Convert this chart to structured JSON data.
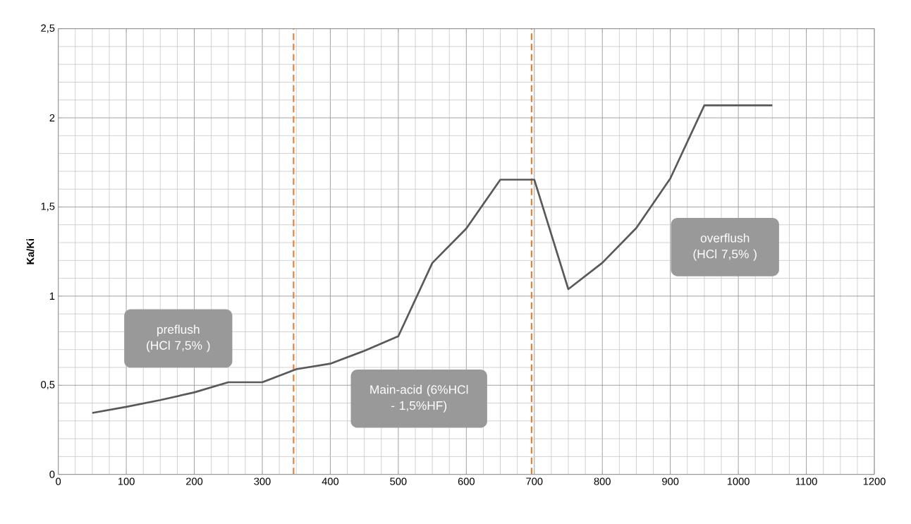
{
  "chart_data": {
    "type": "line",
    "ylabel": "Ka/Ki",
    "x": [
      50,
      100,
      150,
      200,
      250,
      300,
      350,
      400,
      450,
      500,
      550,
      600,
      650,
      700,
      750,
      800,
      850,
      900,
      950,
      1000,
      1050
    ],
    "series": [
      {
        "color": "#595959",
        "values": [
          0.345,
          0.379,
          0.417,
          0.46,
          0.517,
          0.517,
          0.59,
          0.621,
          0.693,
          0.775,
          1.186,
          1.379,
          1.653,
          1.653,
          1.039,
          1.187,
          1.382,
          1.66,
          2.07,
          2.07,
          2.07
        ]
      }
    ],
    "xlim": [
      0,
      1200
    ],
    "xticks": [
      0,
      100,
      200,
      300,
      400,
      500,
      600,
      700,
      800,
      900,
      1000,
      1100,
      1200
    ],
    "ylim": [
      0,
      2.5
    ],
    "yticks": [
      {
        "value": 0,
        "label": "0"
      },
      {
        "value": 0.5,
        "label": "0,5"
      },
      {
        "value": 1,
        "label": "1"
      },
      {
        "value": 1.5,
        "label": "1,5"
      },
      {
        "value": 2,
        "label": "2"
      },
      {
        "value": 2.5,
        "label": "2,5"
      }
    ],
    "grid": true,
    "marker": "none",
    "line_style": "solid",
    "ref_lines": [
      {
        "axis": "x",
        "value": 346,
        "color": "#ed7d31",
        "line_style": "dashed"
      },
      {
        "axis": "x",
        "value": 696,
        "color": "#ed7d31",
        "line_style": "dashed"
      }
    ],
    "annotations": [
      "preflush (HCl  7,5% )",
      "Main-acid (6%HCl - 1,5%HF)",
      "overflush (HCl  7,5% )"
    ]
  }
}
